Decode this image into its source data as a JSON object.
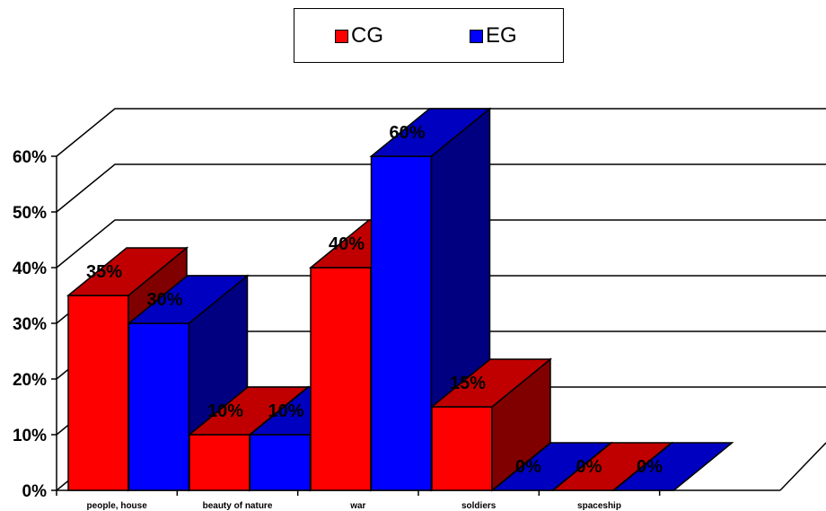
{
  "chart_data": {
    "type": "bar",
    "categories": [
      "people, house",
      "beauty of nature",
      "war",
      "soldiers",
      "spaceship"
    ],
    "series": [
      {
        "name": "CG",
        "values": [
          35,
          10,
          40,
          15,
          0
        ],
        "labels": [
          "35%",
          "10%",
          "40%",
          "15%",
          "0%"
        ]
      },
      {
        "name": "EG",
        "values": [
          30,
          10,
          60,
          0,
          0
        ],
        "labels": [
          "30%",
          "10%",
          "60%",
          "0%",
          "0%"
        ]
      }
    ],
    "y_ticks": [
      "0%",
      "10%",
      "20%",
      "30%",
      "40%",
      "50%",
      "60%"
    ],
    "ylim": [
      0,
      60
    ],
    "grid": true,
    "style": "3d-clustered-column",
    "legend_position": "top-center"
  },
  "colors": {
    "cg_front": "#ff0000",
    "cg_top": "#c00000",
    "cg_side": "#800000",
    "eg_front": "#0000ff",
    "eg_top": "#0000c0",
    "eg_side": "#000080"
  }
}
